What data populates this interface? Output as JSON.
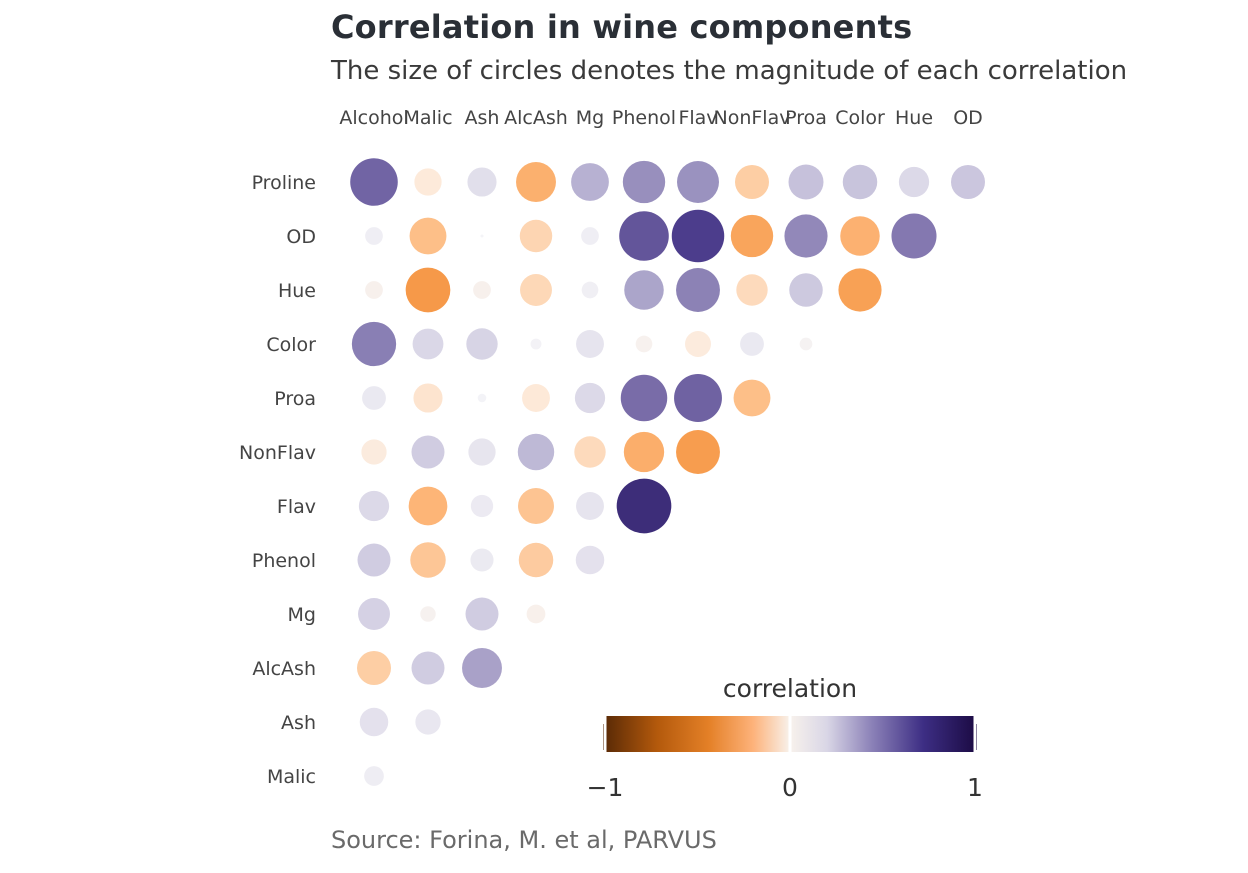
{
  "title": "Correlation in wine components",
  "subtitle": "The size of circles denotes the magnitude of each correlation",
  "caption": "Source: Forina, M. et al, PARVUS",
  "chart_data": {
    "type": "bubble-heatmap",
    "x_labels": [
      "Alcohol",
      "Malic",
      "Ash",
      "AlcAsh",
      "Mg",
      "Phenol",
      "Flav",
      "NonFlav",
      "Proa",
      "Color",
      "Hue",
      "OD"
    ],
    "y_labels": [
      "Proline",
      "OD",
      "Hue",
      "Color",
      "Proa",
      "NonFlav",
      "Flav",
      "Phenol",
      "Mg",
      "AlcAsh",
      "Ash",
      "Malic"
    ],
    "values": [
      [
        0.64,
        -0.19,
        0.22,
        -0.44,
        0.39,
        0.5,
        0.49,
        -0.31,
        0.33,
        0.32,
        0.24,
        0.31
      ],
      [
        0.07,
        -0.37,
        0.0,
        -0.28,
        0.07,
        0.7,
        0.79,
        -0.5,
        0.52,
        -0.43,
        0.57,
        null
      ],
      [
        -0.07,
        -0.56,
        -0.07,
        -0.27,
        0.06,
        0.43,
        0.54,
        -0.26,
        0.3,
        -0.52,
        null,
        null
      ],
      [
        0.55,
        0.25,
        0.26,
        0.02,
        0.2,
        -0.06,
        -0.17,
        0.14,
        -0.03,
        null,
        null,
        null
      ],
      [
        0.14,
        -0.22,
        0.01,
        -0.2,
        0.24,
        0.61,
        0.65,
        -0.37,
        null,
        null,
        null,
        null
      ],
      [
        -0.16,
        0.29,
        0.19,
        0.36,
        -0.26,
        -0.45,
        -0.54,
        null,
        null,
        null,
        null,
        null
      ],
      [
        0.24,
        -0.41,
        0.12,
        -0.35,
        0.2,
        0.86,
        null,
        null,
        null,
        null,
        null,
        null
      ],
      [
        0.29,
        -0.34,
        0.13,
        -0.32,
        0.21,
        null,
        null,
        null,
        null,
        null,
        null,
        null
      ],
      [
        0.27,
        -0.05,
        0.29,
        -0.08,
        null,
        null,
        null,
        null,
        null,
        null,
        null,
        null
      ],
      [
        -0.31,
        0.29,
        0.44,
        null,
        null,
        null,
        null,
        null,
        null,
        null,
        null,
        null
      ],
      [
        0.21,
        0.16,
        null,
        null,
        null,
        null,
        null,
        null,
        null,
        null,
        null,
        null
      ],
      [
        0.09,
        null,
        null,
        null,
        null,
        null,
        null,
        null,
        null,
        null,
        null,
        null
      ]
    ],
    "color_scale": {
      "negative": [
        "#fde9d8",
        "#fdb77a",
        "#f4923d",
        "#dd7218",
        "#7f3b08"
      ],
      "neutral": "#f4f4f7",
      "positive": [
        "#e6e4ee",
        "#b4aed0",
        "#7b6faa",
        "#4a3a8a",
        "#1f0e50"
      ]
    },
    "legend": {
      "title": "correlation",
      "ticks": [
        "−1",
        "0",
        "1"
      ],
      "tick_values": [
        -1,
        0,
        1
      ],
      "placement": "bottom-right"
    }
  }
}
